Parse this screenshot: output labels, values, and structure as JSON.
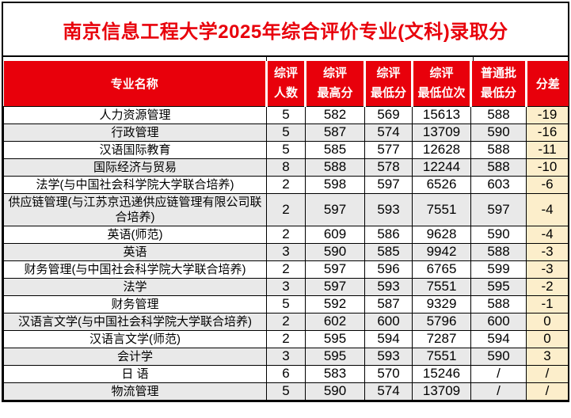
{
  "title": "南京信息工程大学2025年综合评价专业(文科)录取分",
  "colors": {
    "header_bg": "#e8000b",
    "title_text": "#e8000b",
    "alt_row_bg": "#e9e9e9",
    "diff_column_bg": "#fceecb",
    "header_text": "#ffffff",
    "body_text": "#000000",
    "grid": "#000000"
  },
  "table": {
    "columns": [
      {
        "key": "major",
        "label": "专业名称",
        "line1": "专业名称"
      },
      {
        "key": "count",
        "label": "综评人数",
        "line1": "综评",
        "line2": "人数"
      },
      {
        "key": "max",
        "label": "综评最高分",
        "line1": "综评",
        "line2": "最高分"
      },
      {
        "key": "min",
        "label": "综评最低分",
        "line1": "综评",
        "line2": "最低分"
      },
      {
        "key": "rank",
        "label": "综评最低位次",
        "line1": "综评",
        "line2": "最低位次"
      },
      {
        "key": "regular",
        "label": "普通批最低分",
        "line1": "普通批",
        "line2": "最低分"
      },
      {
        "key": "diff",
        "label": "分差",
        "line1": "分差"
      }
    ],
    "rows": [
      [
        "人力资源管理",
        "5",
        "582",
        "569",
        "15613",
        "588",
        "-19"
      ],
      [
        "行政管理",
        "5",
        "587",
        "574",
        "13709",
        "590",
        "-16"
      ],
      [
        "汉语国际教育",
        "5",
        "585",
        "577",
        "12628",
        "588",
        "-11"
      ],
      [
        "国际经济与贸易",
        "8",
        "588",
        "578",
        "12244",
        "588",
        "-10"
      ],
      [
        "法学(与中国社会科学院大学联合培养)",
        "2",
        "598",
        "597",
        "6526",
        "603",
        "-6"
      ],
      [
        "供应链管理(与江苏京迅递供应链管理有限公司联合培养)",
        "2",
        "597",
        "593",
        "7551",
        "597",
        "-4"
      ],
      [
        "英语(师范)",
        "2",
        "609",
        "586",
        "9628",
        "590",
        "-4"
      ],
      [
        "英语",
        "3",
        "590",
        "585",
        "9942",
        "588",
        "-3"
      ],
      [
        "财务管理(与中国社会科学院大学联合培养)",
        "2",
        "597",
        "596",
        "6765",
        "599",
        "-3"
      ],
      [
        "法学",
        "3",
        "597",
        "593",
        "7551",
        "595",
        "-2"
      ],
      [
        "财务管理",
        "5",
        "592",
        "587",
        "9329",
        "588",
        "-1"
      ],
      [
        "汉语言文学(与中国社会科学院大学联合培养)",
        "2",
        "602",
        "600",
        "5796",
        "600",
        "0"
      ],
      [
        "汉语言文学(师范)",
        "2",
        "595",
        "594",
        "7287",
        "594",
        "0"
      ],
      [
        "会计学",
        "3",
        "595",
        "593",
        "7551",
        "590",
        "3"
      ],
      [
        "日 语",
        "6",
        "583",
        "570",
        "15246",
        "/",
        "/"
      ],
      [
        "物流管理",
        "5",
        "590",
        "574",
        "13709",
        "/",
        "/"
      ]
    ]
  }
}
